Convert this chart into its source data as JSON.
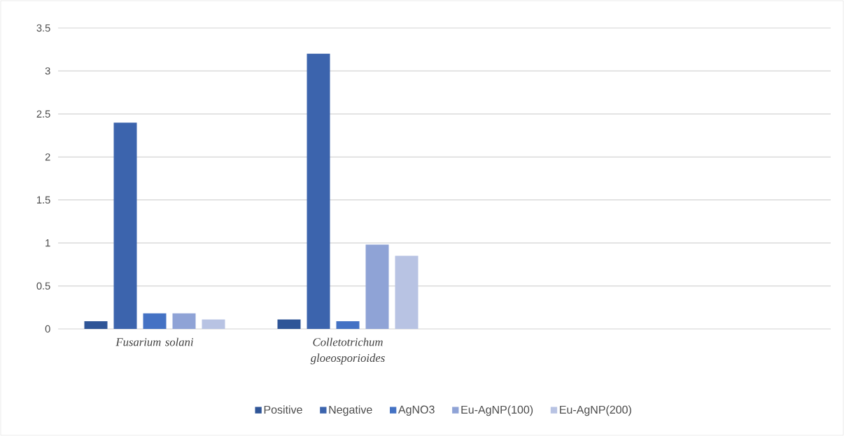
{
  "chart_data": {
    "type": "bar",
    "categories": [
      "Fusarium solani",
      "Colletotrichum gloeosporioides",
      null,
      null
    ],
    "series": [
      {
        "name": "Positive",
        "color": "#2f5597",
        "values": [
          0.09,
          0.11,
          null,
          null
        ]
      },
      {
        "name": "Negative",
        "color": "#3c64ad",
        "values": [
          2.4,
          3.2,
          null,
          null
        ]
      },
      {
        "name": "AgNO3",
        "color": "#4472c4",
        "values": [
          0.18,
          0.09,
          null,
          null
        ]
      },
      {
        "name": "Eu-AgNP(100)",
        "color": "#8fa3d6",
        "values": [
          0.18,
          0.98,
          null,
          null
        ]
      },
      {
        "name": "Eu-AgNP(200)",
        "color": "#b8c3e3",
        "values": [
          0.11,
          0.85,
          null,
          null
        ]
      }
    ],
    "ylim": [
      0,
      3.5
    ],
    "yticks": [
      0,
      0.5,
      1,
      1.5,
      2,
      2.5,
      3,
      3.5
    ],
    "grid": "y",
    "legend": "bottom"
  }
}
